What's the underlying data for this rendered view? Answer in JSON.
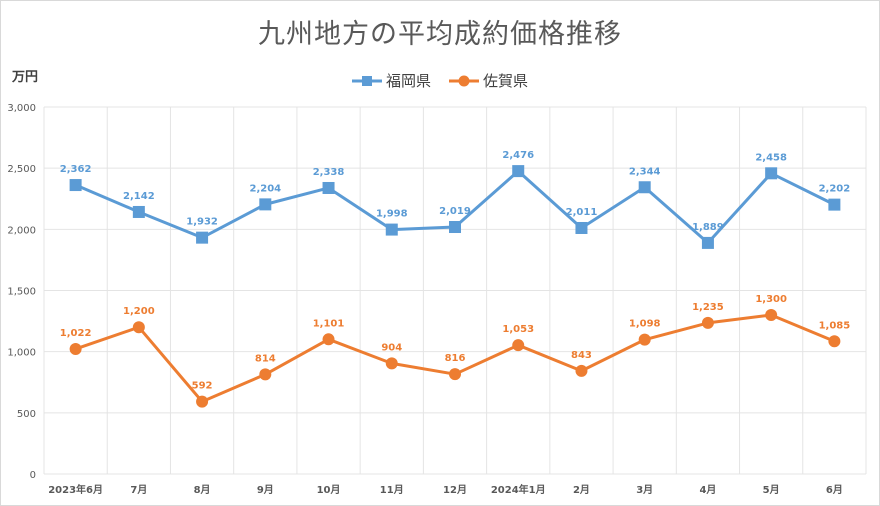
{
  "chart_data": {
    "type": "line",
    "title": "九州地方の平均成約価格推移",
    "ylabel": "万円",
    "ylim": [
      0,
      3000
    ],
    "yticks": [
      "0",
      "500",
      "1,000",
      "1,500",
      "2,000",
      "2,500",
      "3,000"
    ],
    "ytick_values": [
      0,
      500,
      1000,
      1500,
      2000,
      2500,
      3000
    ],
    "categories": [
      "2023年6月",
      "7月",
      "8月",
      "9月",
      "10月",
      "11月",
      "12月",
      "2024年1月",
      "2月",
      "3月",
      "4月",
      "5月",
      "6月"
    ],
    "grid": true,
    "legend_position": "top",
    "series": [
      {
        "name": "福岡県",
        "color": "#5b9bd5",
        "marker": "square",
        "values": [
          2362,
          2142,
          1932,
          2204,
          2338,
          1998,
          2019,
          2476,
          2011,
          2344,
          1889,
          2458,
          2202
        ],
        "labels": [
          "2,362",
          "2,142",
          "1,932",
          "2,204",
          "2,338",
          "1,998",
          "2,019",
          "2,476",
          "2,011",
          "2,344",
          "1,889",
          "2,458",
          "2,202"
        ]
      },
      {
        "name": "佐賀県",
        "color": "#ed7d31",
        "marker": "circle",
        "values": [
          1022,
          1200,
          592,
          814,
          1101,
          904,
          816,
          1053,
          843,
          1098,
          1235,
          1300,
          1085
        ],
        "labels": [
          "1,022",
          "1,200",
          "592",
          "814",
          "1,101",
          "904",
          "816",
          "1,053",
          "843",
          "1,098",
          "1,235",
          "1,300",
          "1,085"
        ]
      }
    ]
  }
}
